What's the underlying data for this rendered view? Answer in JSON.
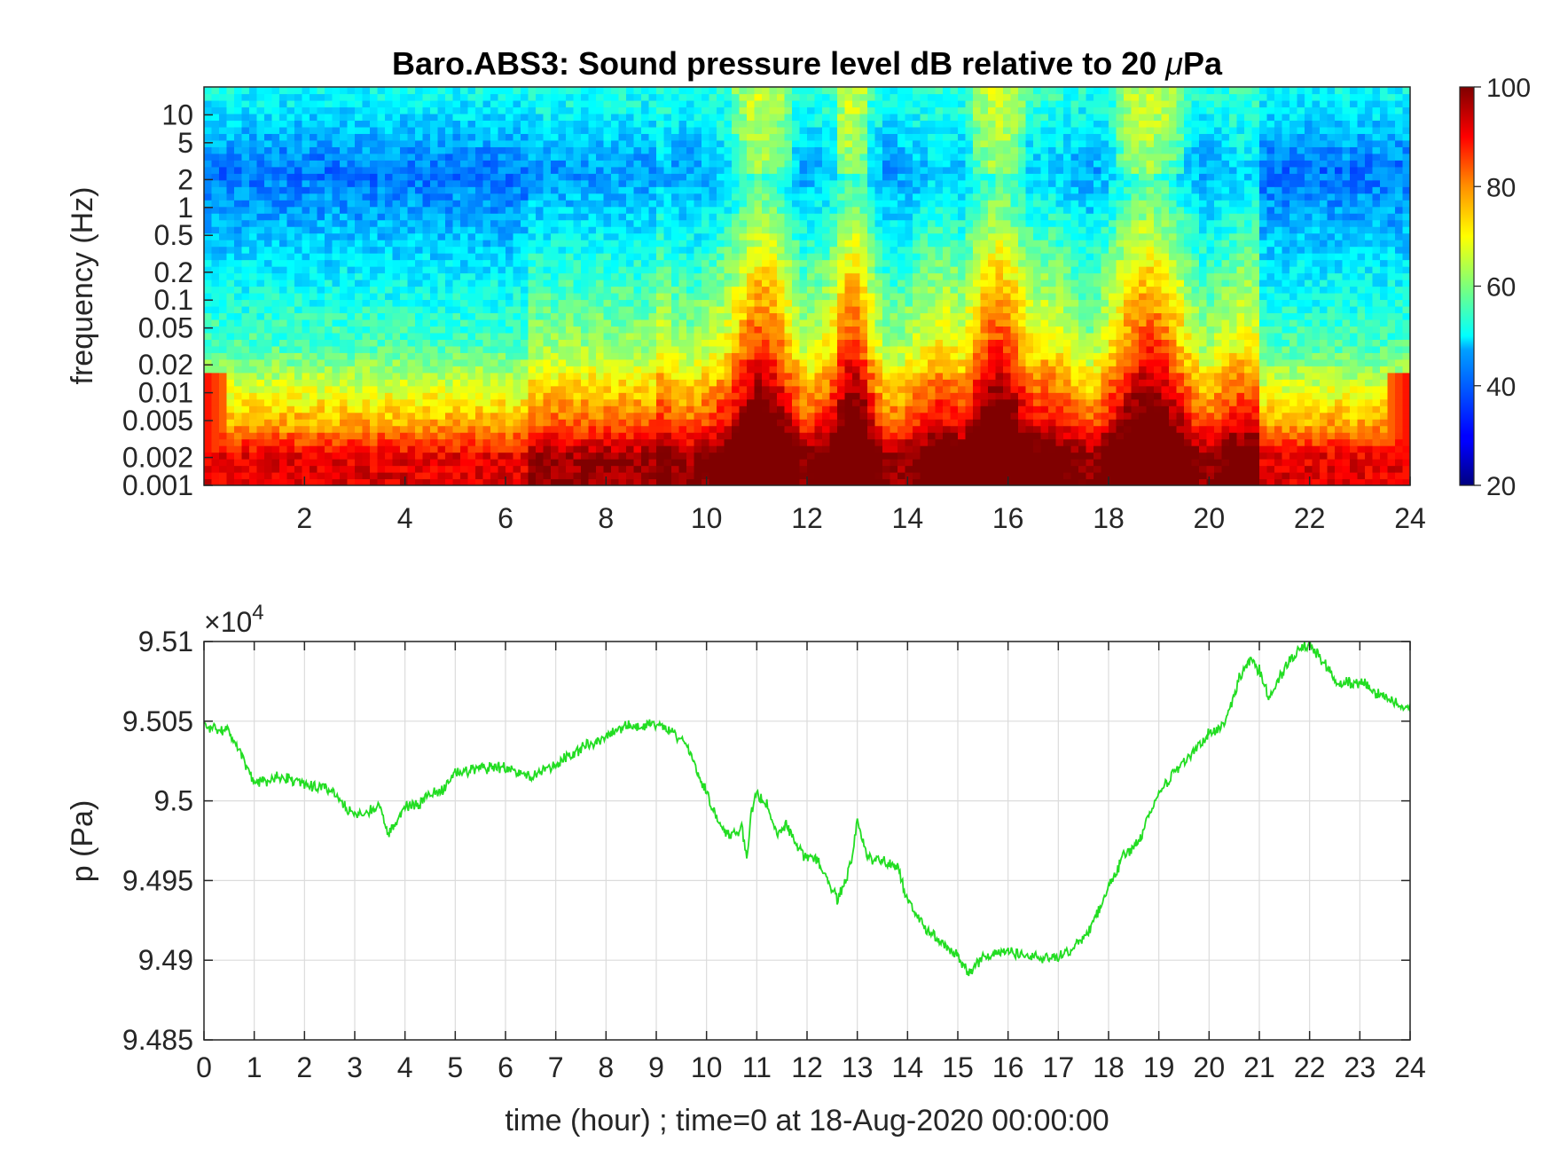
{
  "figure": {
    "charts_count": 2
  },
  "chart_data": [
    {
      "type": "heatmap",
      "title": "Baro.ABS3: Sound pressure level dB relative to 20 μPa",
      "title_prefix": "Baro.ABS3: Sound pressure level dB relative to 20 ",
      "title_mu": "μ",
      "title_suffix": "Pa",
      "xlabel": "",
      "ylabel": "frequency (Hz)",
      "xlim": [
        0,
        24
      ],
      "ylim": [
        0.001,
        20
      ],
      "y_scale": "log",
      "x_ticks": [
        "2",
        "4",
        "6",
        "8",
        "10",
        "12",
        "14",
        "16",
        "18",
        "20",
        "22",
        "24"
      ],
      "y_ticks": [
        "0.001",
        "0.002",
        "0.005",
        "0.01",
        "0.02",
        "0.05",
        "0.1",
        "0.2",
        "0.5",
        "1",
        "2",
        "5",
        "10"
      ],
      "colorbar": {
        "colormap": "jet",
        "range": [
          20,
          100
        ],
        "ticks": [
          "20",
          "40",
          "60",
          "80",
          "100"
        ]
      },
      "grid": false,
      "high_energy_bands_hours": [
        [
          10.5,
          11.7
        ],
        [
          12.6,
          13.2
        ],
        [
          15.2,
          16.4
        ],
        [
          18.0,
          19.6
        ]
      ]
    },
    {
      "type": "line",
      "title": "",
      "xlabel": "time (hour) ; time=0 at 18-Aug-2020 00:00:00",
      "ylabel": "p (Pa)",
      "y_multiplier": "×10",
      "y_multiplier_exp": "4",
      "xlim": [
        0,
        24
      ],
      "ylim": [
        9.485,
        9.51
      ],
      "x_ticks": [
        "0",
        "1",
        "2",
        "3",
        "4",
        "5",
        "6",
        "7",
        "8",
        "9",
        "10",
        "11",
        "12",
        "13",
        "14",
        "15",
        "16",
        "17",
        "18",
        "19",
        "20",
        "21",
        "22",
        "23",
        "24"
      ],
      "y_ticks": [
        "9.485",
        "9.49",
        "9.495",
        "9.5",
        "9.505",
        "9.51"
      ],
      "grid": true,
      "line_color": "#22dd22",
      "series": [
        {
          "x": [
            0,
            0.5,
            1.0,
            1.2,
            1.5,
            2.0,
            2.5,
            2.8,
            3.0,
            3.2,
            3.5,
            3.65,
            3.8,
            4.0,
            4.3,
            4.5,
            4.8,
            5.0,
            5.5,
            6.0,
            6.5,
            7.0,
            7.5,
            8.0,
            8.4,
            8.7,
            9.0,
            9.3,
            9.6,
            10.0,
            10.3,
            10.5,
            10.7,
            10.8,
            10.9,
            11.0,
            11.2,
            11.4,
            11.6,
            11.9,
            12.2,
            12.5,
            12.6,
            12.8,
            12.9,
            13.0,
            13.2,
            13.5,
            13.8,
            14.0,
            14.3,
            14.6,
            15.0,
            15.2,
            15.5,
            15.8,
            16.0,
            16.3,
            16.6,
            17.0,
            17.3,
            17.6,
            18.0,
            18.3,
            18.6,
            19.0,
            19.3,
            19.6,
            20.0,
            20.3,
            20.6,
            20.8,
            21.0,
            21.2,
            21.5,
            21.8,
            22.0,
            22.3,
            22.6,
            23.0,
            23.3,
            23.6,
            24.0
          ],
          "y": [
            9.5047,
            9.5043,
            9.5012,
            9.5012,
            9.5016,
            9.501,
            9.5008,
            9.4996,
            9.499,
            9.4993,
            9.4997,
            9.4979,
            9.4986,
            9.4997,
            9.4998,
            9.5005,
            9.5008,
            9.5018,
            9.502,
            9.5021,
            9.5015,
            9.5023,
            9.5033,
            9.504,
            9.5048,
            9.5046,
            9.5049,
            9.5044,
            9.5036,
            9.5005,
            9.4982,
            9.4977,
            9.4983,
            9.4966,
            9.4995,
            9.5003,
            9.4998,
            9.498,
            9.4985,
            9.4967,
            9.4962,
            9.4945,
            9.4937,
            9.4952,
            9.4966,
            9.4987,
            9.4965,
            9.4962,
            9.4958,
            9.4938,
            9.4922,
            9.4913,
            9.4902,
            9.4892,
            9.4902,
            9.4905,
            9.4906,
            9.4902,
            9.4901,
            9.4902,
            9.4908,
            9.4918,
            9.4945,
            9.4965,
            9.4975,
            9.5005,
            9.5018,
            9.5027,
            9.5042,
            9.5048,
            9.5077,
            9.5088,
            9.5082,
            9.5065,
            9.5083,
            9.5095,
            9.5098,
            9.5086,
            9.5073,
            9.5075,
            9.5068,
            9.5063,
            9.5056
          ]
        }
      ]
    }
  ]
}
